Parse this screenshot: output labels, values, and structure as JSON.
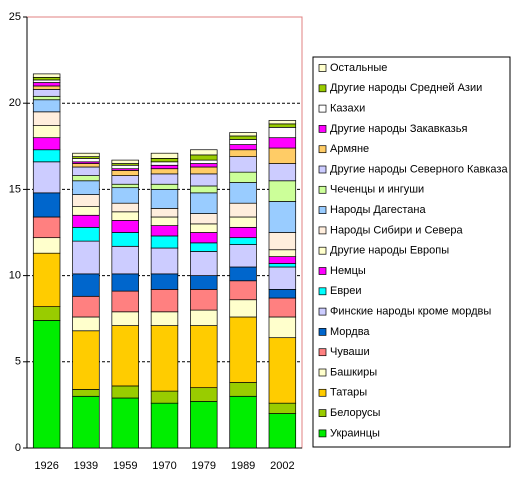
{
  "chart_data": {
    "type": "stacked_bar",
    "categories": [
      "1926",
      "1939",
      "1959",
      "1970",
      "1979",
      "1989",
      "2002"
    ],
    "series": [
      {
        "name": "Украинцы",
        "color": "#00ee00",
        "values": [
          7.4,
          3.0,
          2.9,
          2.6,
          2.7,
          3.0,
          2.0
        ]
      },
      {
        "name": "Белорусы",
        "color": "#99cc00",
        "values": [
          0.8,
          0.4,
          0.7,
          0.7,
          0.8,
          0.8,
          0.6
        ]
      },
      {
        "name": "Татары",
        "color": "#ffcc00",
        "values": [
          3.1,
          3.4,
          3.5,
          3.8,
          3.6,
          3.8,
          3.8
        ]
      },
      {
        "name": "Башкиры",
        "color": "#ffffcc",
        "values": [
          0.9,
          0.8,
          0.8,
          0.8,
          0.9,
          1.0,
          1.2
        ]
      },
      {
        "name": "Чуваши",
        "color": "#ff8080",
        "values": [
          1.2,
          1.2,
          1.2,
          1.3,
          1.2,
          1.1,
          1.1
        ]
      },
      {
        "name": "Мордва",
        "color": "#0066cc",
        "values": [
          1.4,
          1.3,
          1.0,
          0.9,
          0.8,
          0.8,
          0.5
        ]
      },
      {
        "name": "Финские народы кроме мордвы",
        "color": "#ccccff",
        "values": [
          1.8,
          1.9,
          1.6,
          1.5,
          1.4,
          1.3,
          1.3
        ]
      },
      {
        "name": "Евреи",
        "color": "#00ffff",
        "values": [
          0.7,
          0.8,
          0.8,
          0.7,
          0.5,
          0.4,
          0.2
        ]
      },
      {
        "name": "Немцы",
        "color": "#ff00ff",
        "values": [
          0.7,
          0.7,
          0.7,
          0.6,
          0.6,
          0.6,
          0.4
        ]
      },
      {
        "name": "Другие народы Европы",
        "color": "#ffffcc",
        "values": [
          0.7,
          0.5,
          0.5,
          0.5,
          0.5,
          0.6,
          0.4
        ]
      },
      {
        "name": "Народы Сибири и Севера",
        "color": "#ffeedd",
        "values": [
          0.8,
          0.7,
          0.5,
          0.5,
          0.6,
          0.8,
          1.0
        ]
      },
      {
        "name": "Народы Дагестана",
        "color": "#99ccff",
        "values": [
          0.7,
          0.8,
          0.9,
          1.1,
          1.2,
          1.2,
          1.8
        ]
      },
      {
        "name": "Чеченцы и ингуши",
        "color": "#ccff99",
        "values": [
          0.2,
          0.3,
          0.2,
          0.3,
          0.4,
          0.6,
          1.2
        ]
      },
      {
        "name": "Другие народы Северного Кавказа",
        "color": "#ccccff",
        "values": [
          0.4,
          0.5,
          0.5,
          0.6,
          0.7,
          0.9,
          1.0
        ]
      },
      {
        "name": "Армяне",
        "color": "#ffcc66",
        "values": [
          0.2,
          0.2,
          0.3,
          0.3,
          0.4,
          0.4,
          0.9
        ]
      },
      {
        "name": "Другие народы Закавказья",
        "color": "#ff00ff",
        "values": [
          0.2,
          0.1,
          0.1,
          0.2,
          0.2,
          0.3,
          0.6
        ]
      },
      {
        "name": "Казахи",
        "color": "#ffffff",
        "values": [
          0.15,
          0.2,
          0.2,
          0.2,
          0.2,
          0.3,
          0.6
        ]
      },
      {
        "name": "Другие народы Средней Азии",
        "color": "#99cc00",
        "values": [
          0.15,
          0.1,
          0.1,
          0.2,
          0.3,
          0.2,
          0.2
        ]
      },
      {
        "name": "Остальные",
        "color": "#ffffcc",
        "values": [
          0.2,
          0.2,
          0.2,
          0.3,
          0.3,
          0.2,
          0.2
        ]
      }
    ],
    "ylim": [
      0,
      25
    ],
    "yticks": [
      0,
      5,
      10,
      15,
      20,
      25
    ],
    "grid": true,
    "legend": "right"
  }
}
